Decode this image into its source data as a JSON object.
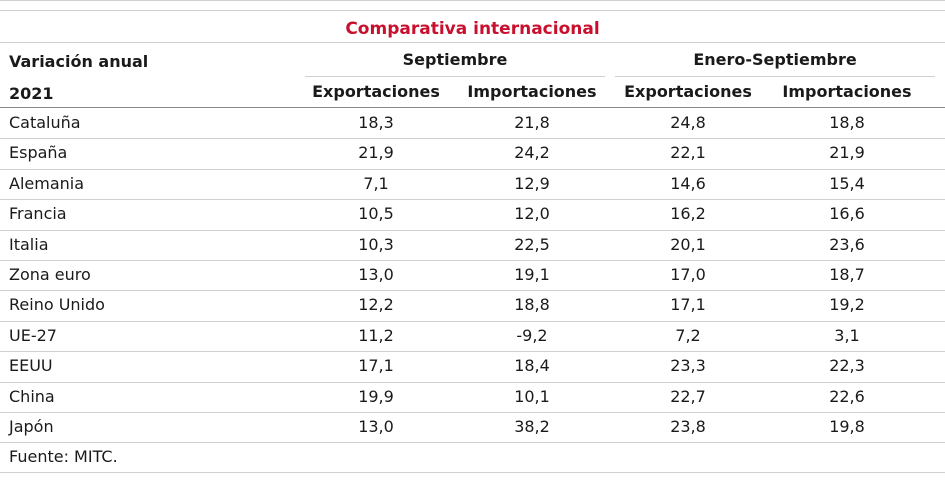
{
  "table": {
    "title": "Comparativa internacional",
    "corner_line1": "Variación anual",
    "corner_line2": "2021",
    "group_headers": [
      "Septiembre",
      "Enero-Septiembre"
    ],
    "sub_headers": [
      "Exportaciones",
      "Importaciones",
      "Exportaciones",
      "Importaciones"
    ],
    "rows": [
      {
        "label": "Cataluña",
        "values": [
          "18,3",
          "21,8",
          "24,8",
          "18,8"
        ]
      },
      {
        "label": "España",
        "values": [
          "21,9",
          "24,2",
          "22,1",
          "21,9"
        ]
      },
      {
        "label": "Alemania",
        "values": [
          "7,1",
          "12,9",
          "14,6",
          "15,4"
        ]
      },
      {
        "label": "Francia",
        "values": [
          "10,5",
          "12,0",
          "16,2",
          "16,6"
        ]
      },
      {
        "label": "Italia",
        "values": [
          "10,3",
          "22,5",
          "20,1",
          "23,6"
        ]
      },
      {
        "label": "Zona euro",
        "values": [
          "13,0",
          "19,1",
          "17,0",
          "18,7"
        ]
      },
      {
        "label": "Reino Unido",
        "values": [
          "12,2",
          "18,8",
          "17,1",
          "19,2"
        ]
      },
      {
        "label": "UE-27",
        "values": [
          "11,2",
          "-9,2",
          "7,2",
          "3,1"
        ]
      },
      {
        "label": "EEUU",
        "values": [
          "17,1",
          "18,4",
          "23,3",
          "22,3"
        ]
      },
      {
        "label": "China",
        "values": [
          "19,9",
          "10,1",
          "22,7",
          "22,6"
        ]
      },
      {
        "label": "Japón",
        "values": [
          "13,0",
          "38,2",
          "23,8",
          "19,8"
        ]
      }
    ],
    "source": "Fuente: MITC.",
    "title_color": "#c8102e"
  },
  "chart_data": {
    "type": "table",
    "title": "Comparativa internacional",
    "columns": [
      "Variación anual 2021",
      "Septiembre Exportaciones",
      "Septiembre Importaciones",
      "Enero-Septiembre Exportaciones",
      "Enero-Septiembre Importaciones"
    ],
    "categories": [
      "Cataluña",
      "España",
      "Alemania",
      "Francia",
      "Italia",
      "Zona euro",
      "Reino Unido",
      "UE-27",
      "EEUU",
      "China",
      "Japón"
    ],
    "series": [
      {
        "name": "Septiembre Exportaciones",
        "values": [
          18.3,
          21.9,
          7.1,
          10.5,
          10.3,
          13.0,
          12.2,
          11.2,
          17.1,
          19.9,
          13.0
        ]
      },
      {
        "name": "Septiembre Importaciones",
        "values": [
          21.8,
          24.2,
          12.9,
          12.0,
          22.5,
          19.1,
          18.8,
          -9.2,
          18.4,
          10.1,
          38.2
        ]
      },
      {
        "name": "Enero-Septiembre Exportaciones",
        "values": [
          24.8,
          22.1,
          14.6,
          16.2,
          20.1,
          17.0,
          17.1,
          7.2,
          23.3,
          22.7,
          23.8
        ]
      },
      {
        "name": "Enero-Septiembre Importaciones",
        "values": [
          18.8,
          21.9,
          15.4,
          16.6,
          23.6,
          18.7,
          19.2,
          3.1,
          22.3,
          22.6,
          19.8
        ]
      }
    ]
  }
}
